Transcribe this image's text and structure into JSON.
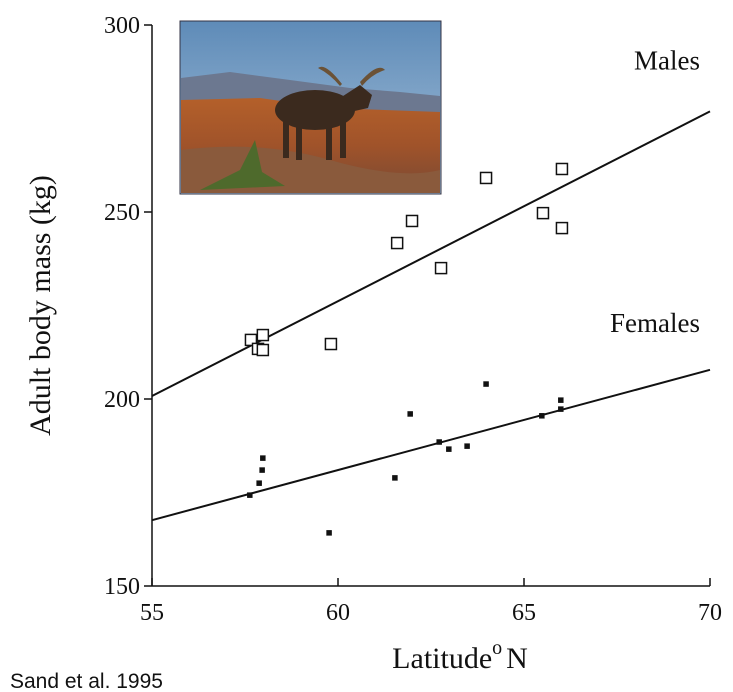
{
  "chart_data": {
    "type": "scatter",
    "x_label": "Latitude",
    "x_label_sup": "o",
    "x_label_unit": "N",
    "y_label": "Adult body mass (kg)",
    "source": "Sand et al. 1995",
    "xlim": [
      55,
      70
    ],
    "ylim": [
      150,
      300
    ],
    "xticks": [
      55,
      60,
      65,
      70
    ],
    "yticks": [
      150,
      200,
      250,
      300
    ],
    "series": [
      {
        "name": "Males",
        "color": "#111111",
        "marker": "open-square",
        "x": [
          57.66,
          57.85,
          57.98,
          57.98,
          59.81,
          61.59,
          61.99,
          62.77,
          63.98,
          65.51,
          66.02,
          66.02
        ],
        "values": [
          215.8,
          213.4,
          217.1,
          213.1,
          214.7,
          241.7,
          247.6,
          235.0,
          259.1,
          249.7,
          261.5,
          245.7
        ],
        "fit": {
          "x": [
            55,
            70
          ],
          "values": [
            200.8,
            276.9
          ]
        }
      },
      {
        "name": "Females",
        "color": "#111111",
        "marker": "filled-square",
        "x": [
          57.63,
          57.88,
          57.96,
          57.98,
          59.76,
          61.53,
          61.94,
          62.72,
          62.98,
          63.47,
          63.98,
          65.48,
          65.99,
          65.99
        ],
        "values": [
          174.3,
          177.5,
          181.0,
          184.2,
          164.2,
          178.9,
          196.0,
          188.5,
          186.6,
          187.4,
          204.0,
          195.5,
          199.7,
          197.3
        ],
        "fit": {
          "x": [
            55,
            70
          ],
          "values": [
            167.6,
            207.8
          ]
        }
      }
    ]
  }
}
